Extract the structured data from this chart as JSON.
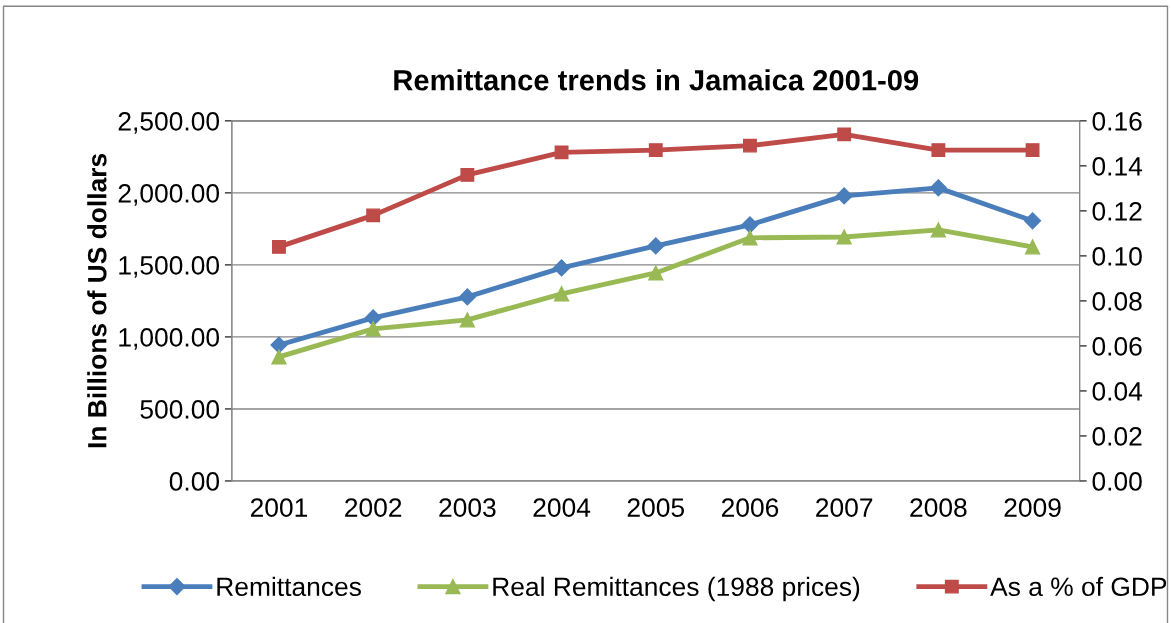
{
  "chart_data": {
    "type": "line",
    "title": "Remittance trends in Jamaica 2001-09",
    "ylabel": "In Billions of US dollars",
    "categories": [
      "2001",
      "2002",
      "2003",
      "2004",
      "2005",
      "2006",
      "2007",
      "2008",
      "2009"
    ],
    "series": [
      {
        "name": "Remittances",
        "color": "#4a7ebb",
        "marker": "diamond",
        "values": [
          944,
          1132,
          1278,
          1479,
          1632,
          1778,
          1979,
          2035,
          1806
        ]
      },
      {
        "name": "Real Remittances (1988 prices)",
        "color": "#98b954",
        "marker": "triangle",
        "values": [
          861,
          1056,
          1118,
          1299,
          1444,
          1688,
          1694,
          1743,
          1625
        ]
      },
      {
        "name": "As a % of GDP",
        "color": "#be4b48",
        "marker": "square",
        "axis": "y2",
        "values": [
          0.104,
          0.118,
          0.136,
          0.146,
          0.147,
          0.149,
          0.154,
          0.147,
          0.147
        ]
      }
    ],
    "ylim": [
      0,
      2500
    ],
    "yticks": [
      {
        "value": 0,
        "label": "0.00"
      },
      {
        "value": 500,
        "label": "500.00"
      },
      {
        "value": 1000,
        "label": "1,000.00"
      },
      {
        "value": 1500,
        "label": "1,500.00"
      },
      {
        "value": 2000,
        "label": "2,000.00"
      },
      {
        "value": 2500,
        "label": "2,500.00"
      }
    ],
    "y2lim": [
      0,
      0.16
    ],
    "y2ticks": [
      {
        "value": 0,
        "label": "0.00"
      },
      {
        "value": 0.02,
        "label": "0.02"
      },
      {
        "value": 0.04,
        "label": "0.04"
      },
      {
        "value": 0.06,
        "label": "0.06"
      },
      {
        "value": 0.08,
        "label": "0.08"
      },
      {
        "value": 0.1,
        "label": "0.10"
      },
      {
        "value": 0.12,
        "label": "0.12"
      },
      {
        "value": 0.14,
        "label": "0.14"
      },
      {
        "value": 0.16,
        "label": "0.16"
      }
    ],
    "grid": "y",
    "legend": "bottom",
    "line_style": "solid"
  }
}
